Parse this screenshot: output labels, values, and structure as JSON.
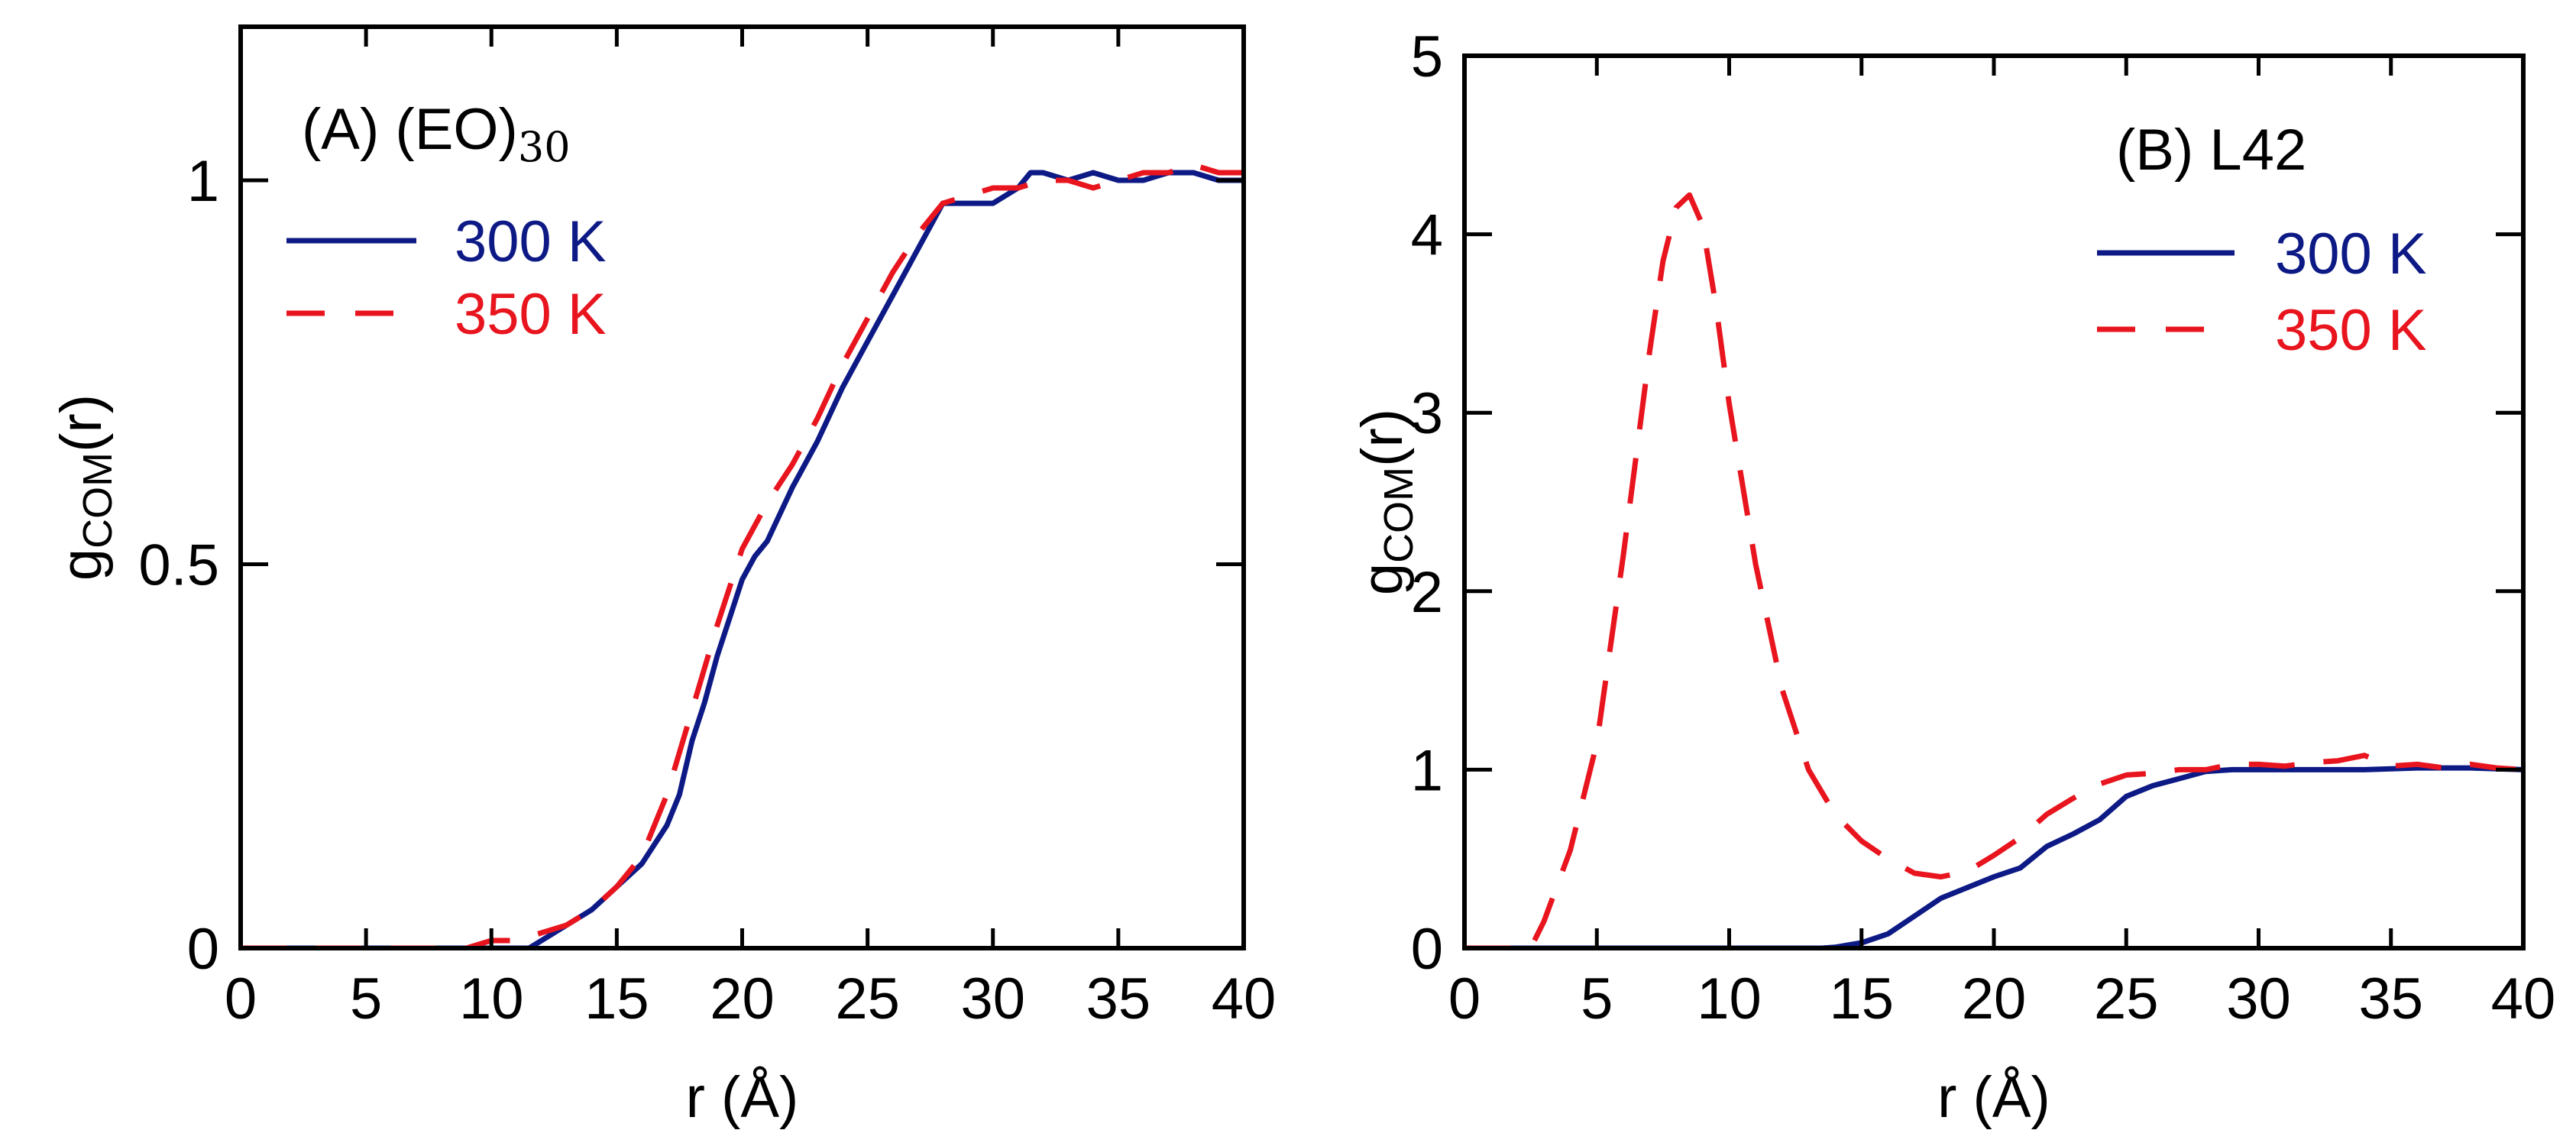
{
  "chart_data": [
    {
      "type": "line",
      "panel_label": "(A) (EO)",
      "panel_label_sub": "30",
      "xlabel": "r (Å)",
      "ylabel_main": "g",
      "ylabel_sub": "COM",
      "ylabel_tail": "(r)",
      "xlim": [
        0,
        40
      ],
      "ylim": [
        0,
        1.2
      ],
      "xticks": [
        0,
        5,
        10,
        15,
        20,
        25,
        30,
        35,
        40
      ],
      "xtick_labels": [
        "0",
        "5",
        "10",
        "15",
        "20",
        "25",
        "30",
        "35",
        "40"
      ],
      "yticks": [
        0,
        0.5,
        1
      ],
      "ytick_labels": [
        "0",
        "0.5",
        "1"
      ],
      "legend_position": "top-left",
      "series": [
        {
          "name": "300 K",
          "style": "solid",
          "color": "#0d1a85",
          "x": [
            0,
            11.5,
            12,
            13,
            14,
            15,
            16,
            17,
            17.5,
            18,
            18.5,
            19,
            19.5,
            20,
            20.5,
            21,
            22,
            23,
            24,
            25,
            26,
            27,
            27.5,
            28,
            29,
            30,
            31,
            31.5,
            32,
            33,
            34,
            35,
            36,
            37,
            38,
            39,
            40
          ],
          "y": [
            0,
            0,
            0.01,
            0.03,
            0.05,
            0.08,
            0.11,
            0.16,
            0.2,
            0.27,
            0.32,
            0.38,
            0.43,
            0.48,
            0.51,
            0.53,
            0.6,
            0.66,
            0.73,
            0.79,
            0.85,
            0.91,
            0.94,
            0.97,
            0.97,
            0.97,
            0.99,
            1.01,
            1.01,
            1.0,
            1.01,
            1.0,
            1.0,
            1.01,
            1.01,
            1.0,
            1.0
          ]
        },
        {
          "name": "350 K",
          "style": "dashed",
          "color": "#e8141e",
          "x": [
            0,
            9,
            10,
            11,
            12,
            13,
            14,
            15,
            16,
            17,
            18,
            19,
            20,
            21,
            22,
            23,
            24,
            25,
            26,
            27,
            28,
            29,
            30,
            31,
            32,
            33,
            34,
            35,
            36,
            37,
            38,
            39,
            40
          ],
          "y": [
            0,
            0,
            0.01,
            0.01,
            0.02,
            0.03,
            0.05,
            0.08,
            0.12,
            0.2,
            0.31,
            0.42,
            0.52,
            0.58,
            0.63,
            0.69,
            0.76,
            0.82,
            0.88,
            0.93,
            0.97,
            0.98,
            0.99,
            0.99,
            1.0,
            1.0,
            0.99,
            1.0,
            1.01,
            1.01,
            1.02,
            1.01,
            1.01
          ]
        }
      ]
    },
    {
      "type": "line",
      "panel_label": "(B) L42",
      "xlabel": "r (Å)",
      "ylabel_main": "g",
      "ylabel_sub": "COM",
      "ylabel_tail": "(r)",
      "xlim": [
        0,
        40
      ],
      "ylim": [
        0,
        5
      ],
      "xticks": [
        0,
        5,
        10,
        15,
        20,
        25,
        30,
        35,
        40
      ],
      "xtick_labels": [
        "0",
        "5",
        "10",
        "15",
        "20",
        "25",
        "30",
        "35",
        "40"
      ],
      "yticks": [
        0,
        1,
        2,
        3,
        4,
        5
      ],
      "ytick_labels": [
        "0",
        "1",
        "2",
        "3",
        "4",
        "5"
      ],
      "legend_position": "top-right",
      "series": [
        {
          "name": "300 K",
          "style": "solid",
          "color": "#0d1a85",
          "x": [
            0,
            13.5,
            14,
            15,
            16,
            17,
            18,
            19,
            20,
            21,
            22,
            23,
            24,
            25,
            26,
            27,
            28,
            29,
            30,
            32,
            34,
            36,
            38,
            40
          ],
          "y": [
            0,
            0,
            0.005,
            0.03,
            0.08,
            0.18,
            0.28,
            0.34,
            0.4,
            0.45,
            0.57,
            0.64,
            0.72,
            0.85,
            0.91,
            0.95,
            0.99,
            1.0,
            1.0,
            1.0,
            1.0,
            1.01,
            1.01,
            1.0
          ]
        },
        {
          "name": "350 K",
          "style": "dashed",
          "color": "#e8141e",
          "x": [
            0,
            2.5,
            3,
            4,
            5,
            6,
            7,
            7.5,
            8,
            8.5,
            9,
            9.5,
            10,
            11,
            12,
            13,
            14,
            15,
            16,
            17,
            18,
            19,
            20,
            21,
            22,
            23,
            24,
            25,
            26,
            27,
            28,
            29,
            30,
            31,
            32,
            33,
            34,
            35,
            36,
            37,
            38,
            39,
            40
          ],
          "y": [
            0,
            0,
            0.15,
            0.55,
            1.15,
            2.2,
            3.35,
            3.85,
            4.15,
            4.22,
            4.05,
            3.6,
            3.05,
            2.15,
            1.45,
            1.0,
            0.75,
            0.6,
            0.5,
            0.42,
            0.4,
            0.43,
            0.52,
            0.62,
            0.75,
            0.84,
            0.92,
            0.97,
            0.98,
            1.0,
            1.0,
            1.03,
            1.03,
            1.02,
            1.04,
            1.05,
            1.08,
            1.02,
            1.03,
            1.01,
            1.03,
            1.01,
            1.0
          ]
        }
      ]
    }
  ]
}
